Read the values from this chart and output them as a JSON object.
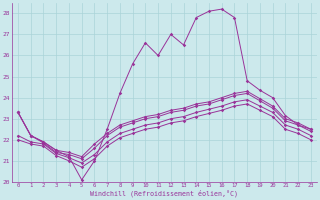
{
  "xlabel": "Windchill (Refroidissement éolien,°C)",
  "xlim": [
    -0.5,
    23.5
  ],
  "ylim": [
    20,
    28.5
  ],
  "yticks": [
    20,
    21,
    22,
    23,
    24,
    25,
    26,
    27,
    28
  ],
  "xticks": [
    0,
    1,
    2,
    3,
    4,
    5,
    6,
    7,
    8,
    9,
    10,
    11,
    12,
    13,
    14,
    15,
    16,
    17,
    18,
    19,
    20,
    21,
    22,
    23
  ],
  "background_color": "#cce9ec",
  "grid_color": "#aad4d8",
  "line_color": "#993399",
  "spike_x": [
    0,
    1,
    2,
    3,
    4,
    5,
    6,
    7,
    8,
    9,
    10,
    11,
    12,
    13,
    14,
    15,
    16,
    17,
    18,
    19,
    20,
    21,
    22,
    23
  ],
  "spike_y": [
    23.3,
    22.2,
    21.9,
    21.5,
    21.2,
    20.1,
    21.0,
    22.5,
    24.2,
    25.6,
    26.6,
    26.0,
    27.0,
    26.5,
    27.8,
    28.1,
    28.2,
    27.8,
    24.8,
    24.35,
    24.0,
    23.15,
    22.7,
    22.5
  ],
  "line1_x": [
    0,
    1,
    2,
    3,
    4,
    5,
    6,
    7,
    8,
    9,
    10,
    11,
    12,
    13,
    14,
    15,
    16,
    17,
    18,
    19,
    20,
    21,
    22,
    23
  ],
  "line1_y": [
    23.3,
    22.2,
    21.9,
    21.5,
    21.4,
    21.2,
    21.8,
    22.3,
    22.7,
    22.9,
    23.1,
    23.2,
    23.4,
    23.5,
    23.7,
    23.8,
    24.0,
    24.2,
    24.3,
    23.95,
    23.6,
    23.0,
    22.8,
    22.5
  ],
  "line2_x": [
    0,
    1,
    2,
    3,
    4,
    5,
    6,
    7,
    8,
    9,
    10,
    11,
    12,
    13,
    14,
    15,
    16,
    17,
    18,
    19,
    20,
    21,
    22,
    23
  ],
  "line2_y": [
    23.3,
    22.2,
    21.85,
    21.4,
    21.3,
    21.1,
    21.6,
    22.2,
    22.6,
    22.8,
    23.0,
    23.1,
    23.3,
    23.4,
    23.6,
    23.7,
    23.9,
    24.1,
    24.2,
    23.85,
    23.5,
    22.9,
    22.7,
    22.4
  ],
  "line3_x": [
    0,
    1,
    2,
    3,
    4,
    5,
    6,
    7,
    8,
    9,
    10,
    11,
    12,
    13,
    14,
    15,
    16,
    17,
    18,
    19,
    20,
    21,
    22,
    23
  ],
  "line3_y": [
    22.2,
    21.9,
    21.8,
    21.35,
    21.15,
    20.9,
    21.3,
    21.9,
    22.3,
    22.5,
    22.7,
    22.8,
    23.0,
    23.1,
    23.3,
    23.45,
    23.6,
    23.8,
    23.9,
    23.6,
    23.3,
    22.7,
    22.5,
    22.2
  ],
  "line4_x": [
    0,
    1,
    2,
    3,
    4,
    5,
    6,
    7,
    8,
    9,
    10,
    11,
    12,
    13,
    14,
    15,
    16,
    17,
    18,
    19,
    20,
    21,
    22,
    23
  ],
  "line4_y": [
    22.0,
    21.8,
    21.7,
    21.25,
    21.0,
    20.7,
    21.1,
    21.7,
    22.1,
    22.3,
    22.5,
    22.6,
    22.8,
    22.9,
    23.1,
    23.25,
    23.4,
    23.6,
    23.7,
    23.4,
    23.1,
    22.5,
    22.3,
    22.0
  ]
}
